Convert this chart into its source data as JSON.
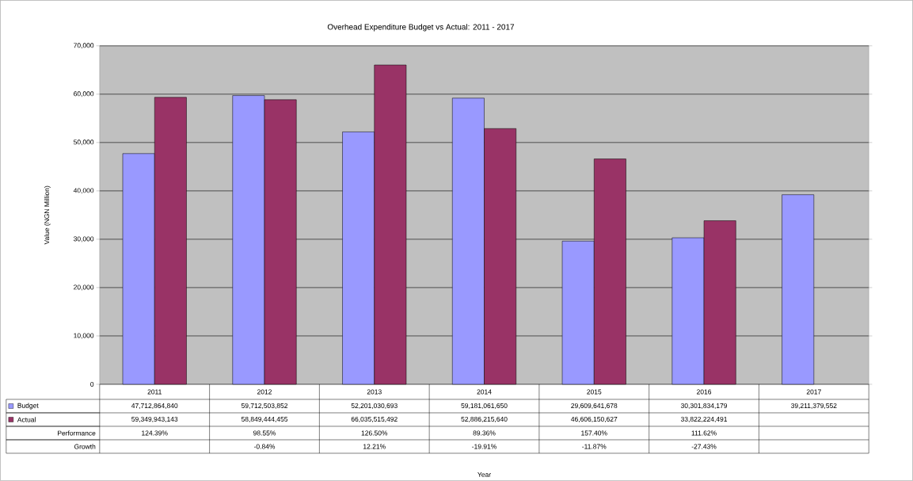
{
  "chart_data": {
    "type": "bar",
    "title": "Overhead Expenditure Budget vs Actual: 2011 - 2017",
    "ylabel": "Value (NGN Million)",
    "categories": [
      "2011",
      "2012",
      "2013",
      "2014",
      "2015",
      "2016",
      "2017"
    ],
    "series": [
      {
        "name": "Budget",
        "color": "#9999ff",
        "values": [
          47713,
          59713,
          52201,
          59181,
          29610,
          30302,
          39211
        ]
      },
      {
        "name": "Actual",
        "color": "#993366",
        "values": [
          59350,
          58849,
          66036,
          52886,
          46606,
          33822,
          null
        ]
      }
    ],
    "ylim": [
      0,
      70000
    ],
    "yticks": [
      {
        "value": 0,
        "label": "0"
      },
      {
        "value": 10000,
        "label": "10,000"
      },
      {
        "value": 20000,
        "label": "20,000"
      },
      {
        "value": 30000,
        "label": "30,000"
      },
      {
        "value": 40000,
        "label": "40,000"
      },
      {
        "value": 50000,
        "label": "50,000"
      },
      {
        "value": 60000,
        "label": "60,000"
      },
      {
        "value": 70000,
        "label": "70,000"
      }
    ],
    "grid": "y",
    "legend": "bottom left",
    "annotations": [
      "47,712,864,840",
      "59,712,503,852",
      "52,201,030,693",
      "59,181,061,650",
      "29,609,641,678",
      "30,301,834,179",
      "39,211,379,552",
      "59,349,943,143",
      "58,849,444,455",
      "66,035,515,492",
      "52,886,215,640",
      "46,606,150,627",
      "33,822,224,491",
      "Performance",
      "124.39%",
      "98.55%",
      "126.50%",
      "89.36%",
      "157.40%",
      "111.62%",
      "Growth",
      "-0.84%",
      "12.21%",
      "-19.91%",
      "-11.87%",
      "-27.43%",
      "Year"
    ]
  }
}
